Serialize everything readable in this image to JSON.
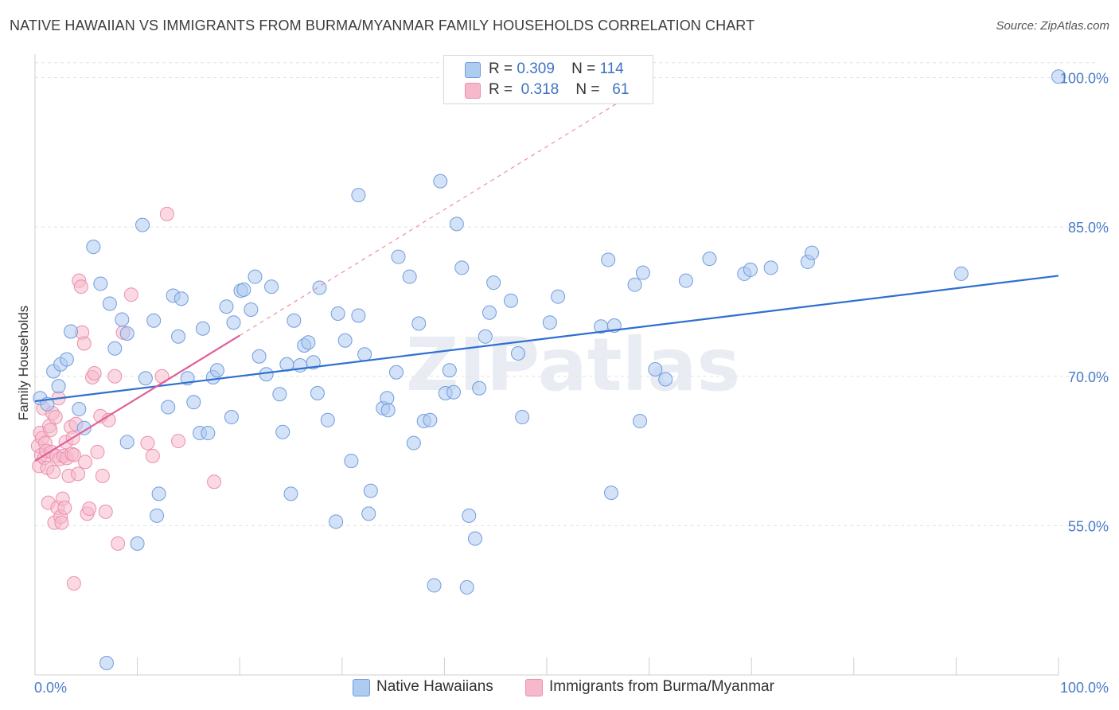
{
  "title": "NATIVE HAWAIIAN VS IMMIGRANTS FROM BURMA/MYANMAR FAMILY HOUSEHOLDS CORRELATION CHART",
  "source": "Source: ZipAtlas.com",
  "watermark": "ZIPatlas",
  "colors": {
    "blue_fill": "#aecbf0",
    "blue_stroke": "#6f9de0",
    "blue_line": "#2f6fd0",
    "pink_fill": "#f6b9cc",
    "pink_stroke": "#ec8fac",
    "pink_line": "#e0609a",
    "tick_blue": "#4a7cc6"
  },
  "legend": {
    "rows": [
      {
        "r_label": "R =",
        "r_value": "0.309",
        "n_label": "N =",
        "n_value": "114"
      },
      {
        "r_label": "R =",
        "r_value": "0.318",
        "n_label": "N =",
        "n_value": "61"
      }
    ]
  },
  "chart_data": {
    "type": "scatter",
    "xlabel": "",
    "ylabel": "Family Households",
    "xlim": [
      0,
      100
    ],
    "ylim": [
      40,
      103
    ],
    "x_tick_labels": [
      "0.0%",
      "100.0%"
    ],
    "y_ticks": [
      55,
      70,
      85,
      100
    ],
    "y_tick_labels": [
      "55.0%",
      "70.0%",
      "85.0%",
      "100.0%"
    ],
    "grid": true,
    "legend_position": "top-center",
    "series": [
      {
        "name": "Native Hawaiians",
        "color": "blue",
        "trend": {
          "x0": 0,
          "y0": 67.5,
          "x1": 100,
          "y1": 80.1
        },
        "points": [
          [
            0.5,
            67.8
          ],
          [
            1.2,
            67.2
          ],
          [
            1.8,
            70.5
          ],
          [
            2.3,
            69
          ],
          [
            2.5,
            71.2
          ],
          [
            3.1,
            71.7
          ],
          [
            3.5,
            74.5
          ],
          [
            4.3,
            66.7
          ],
          [
            4.8,
            64.8
          ],
          [
            5.7,
            83
          ],
          [
            6.4,
            79.3
          ],
          [
            7.3,
            77.3
          ],
          [
            7.8,
            72.8
          ],
          [
            8.5,
            75.7
          ],
          [
            9,
            74.3
          ],
          [
            9,
            63.4
          ],
          [
            10,
            53.2
          ],
          [
            10.5,
            85.2
          ],
          [
            10.8,
            69.8
          ],
          [
            11.6,
            75.6
          ],
          [
            12.1,
            58.2
          ],
          [
            11.9,
            56
          ],
          [
            13,
            66.9
          ],
          [
            13.5,
            78.1
          ],
          [
            14,
            74
          ],
          [
            14.3,
            77.8
          ],
          [
            14.9,
            69.8
          ],
          [
            15.5,
            67.4
          ],
          [
            16.1,
            64.3
          ],
          [
            16.4,
            74.8
          ],
          [
            16.9,
            64.3
          ],
          [
            17.4,
            69.9
          ],
          [
            17.8,
            70.6
          ],
          [
            18.7,
            77
          ],
          [
            19.2,
            65.9
          ],
          [
            19.4,
            75.4
          ],
          [
            20.1,
            78.6
          ],
          [
            20.4,
            78.7
          ],
          [
            21.1,
            76.7
          ],
          [
            21.5,
            80
          ],
          [
            21.9,
            72
          ],
          [
            22.6,
            70.2
          ],
          [
            23.1,
            79
          ],
          [
            23.9,
            68.2
          ],
          [
            24.2,
            64.4
          ],
          [
            24.6,
            71.2
          ],
          [
            25,
            58.2
          ],
          [
            25.3,
            75.6
          ],
          [
            25.9,
            71.1
          ],
          [
            26.3,
            73.1
          ],
          [
            26.7,
            73.4
          ],
          [
            27.2,
            71.4
          ],
          [
            27.6,
            68.3
          ],
          [
            27.8,
            78.9
          ],
          [
            28.6,
            65.6
          ],
          [
            29.4,
            55.4
          ],
          [
            29.6,
            76.3
          ],
          [
            30.3,
            73.6
          ],
          [
            30.9,
            61.5
          ],
          [
            31.6,
            76.1
          ],
          [
            31.6,
            88.2
          ],
          [
            32.2,
            72.2
          ],
          [
            32.6,
            56.2
          ],
          [
            32.8,
            58.5
          ],
          [
            34,
            66.8
          ],
          [
            34.4,
            67.8
          ],
          [
            34.5,
            66.6
          ],
          [
            35.3,
            70.4
          ],
          [
            35.5,
            82
          ],
          [
            36.6,
            80
          ],
          [
            37,
            63.3
          ],
          [
            37.5,
            75.3
          ],
          [
            38,
            65.5
          ],
          [
            38.6,
            65.6
          ],
          [
            39,
            49
          ],
          [
            39.6,
            89.6
          ],
          [
            40.1,
            68.3
          ],
          [
            40.5,
            70.6
          ],
          [
            40.9,
            68.4
          ],
          [
            41.2,
            85.3
          ],
          [
            41.7,
            80.9
          ],
          [
            42.2,
            48.8
          ],
          [
            42.4,
            56
          ],
          [
            43,
            53.7
          ],
          [
            43.4,
            68.8
          ],
          [
            44,
            74
          ],
          [
            44.4,
            76.4
          ],
          [
            44.8,
            79.4
          ],
          [
            46.5,
            77.6
          ],
          [
            47.2,
            72.3
          ],
          [
            47.6,
            65.9
          ],
          [
            50.3,
            75.4
          ],
          [
            51.1,
            78
          ],
          [
            55.3,
            75
          ],
          [
            56,
            81.7
          ],
          [
            56.3,
            58.3
          ],
          [
            56.6,
            75.1
          ],
          [
            58.6,
            79.2
          ],
          [
            59.1,
            65.5
          ],
          [
            59.4,
            80.4
          ],
          [
            60.6,
            70.7
          ],
          [
            61.6,
            69.7
          ],
          [
            63.6,
            79.6
          ],
          [
            65.9,
            81.8
          ],
          [
            69.3,
            80.3
          ],
          [
            69.9,
            80.7
          ],
          [
            71.9,
            80.9
          ],
          [
            75.5,
            81.5
          ],
          [
            75.9,
            82.4
          ],
          [
            90.5,
            80.3
          ],
          [
            100,
            100.1
          ],
          [
            7,
            41.2
          ]
        ]
      },
      {
        "name": "Immigrants from Burma/Myanmar",
        "color": "pink",
        "trend": {
          "x0": 0,
          "y0": 61.5,
          "x1": 20,
          "y1": 74.1
        },
        "trend_dashed": {
          "x0": 20,
          "y0": 74.1,
          "x1": 57,
          "y1": 97.5
        },
        "points": [
          [
            0.3,
            63
          ],
          [
            0.4,
            61
          ],
          [
            0.5,
            64.3
          ],
          [
            0.6,
            62.1
          ],
          [
            0.7,
            63.8
          ],
          [
            0.8,
            66.8
          ],
          [
            0.9,
            61.8
          ],
          [
            1,
            63.3
          ],
          [
            1.1,
            62.5
          ],
          [
            1.2,
            60.8
          ],
          [
            1.3,
            57.3
          ],
          [
            1.4,
            65
          ],
          [
            1.5,
            64.6
          ],
          [
            1.6,
            62.4
          ],
          [
            1.7,
            66.3
          ],
          [
            1.8,
            60.4
          ],
          [
            1.9,
            55.3
          ],
          [
            2,
            65.9
          ],
          [
            2.1,
            62
          ],
          [
            2.2,
            56.8
          ],
          [
            2.3,
            67.8
          ],
          [
            2.4,
            61.7
          ],
          [
            2.5,
            55.9
          ],
          [
            2.6,
            55.3
          ],
          [
            2.7,
            57.7
          ],
          [
            2.8,
            62
          ],
          [
            2.9,
            56.8
          ],
          [
            3,
            63.4
          ],
          [
            3.1,
            61.8
          ],
          [
            3.3,
            60
          ],
          [
            3.5,
            64.9
          ],
          [
            3.6,
            62.2
          ],
          [
            3.7,
            63.8
          ],
          [
            3.8,
            62.1
          ],
          [
            4,
            65.2
          ],
          [
            4.2,
            60.2
          ],
          [
            4.3,
            79.6
          ],
          [
            4.5,
            79
          ],
          [
            4.6,
            74.4
          ],
          [
            4.8,
            73.3
          ],
          [
            4.9,
            61.4
          ],
          [
            5.1,
            56.2
          ],
          [
            5.3,
            56.7
          ],
          [
            5.6,
            69.9
          ],
          [
            5.8,
            70.3
          ],
          [
            6.1,
            62.4
          ],
          [
            6.4,
            66
          ],
          [
            6.6,
            60
          ],
          [
            6.9,
            56.4
          ],
          [
            7.2,
            65.6
          ],
          [
            7.8,
            70
          ],
          [
            8.1,
            53.2
          ],
          [
            8.6,
            74.4
          ],
          [
            9.4,
            78.2
          ],
          [
            11,
            63.3
          ],
          [
            11.5,
            62
          ],
          [
            12.4,
            70
          ],
          [
            12.9,
            86.3
          ],
          [
            14,
            63.5
          ],
          [
            17.5,
            59.4
          ],
          [
            3.8,
            49.2
          ]
        ]
      }
    ]
  },
  "bottom_legend": [
    {
      "label": "Native Hawaiians"
    },
    {
      "label": "Immigrants from Burma/Myanmar"
    }
  ]
}
